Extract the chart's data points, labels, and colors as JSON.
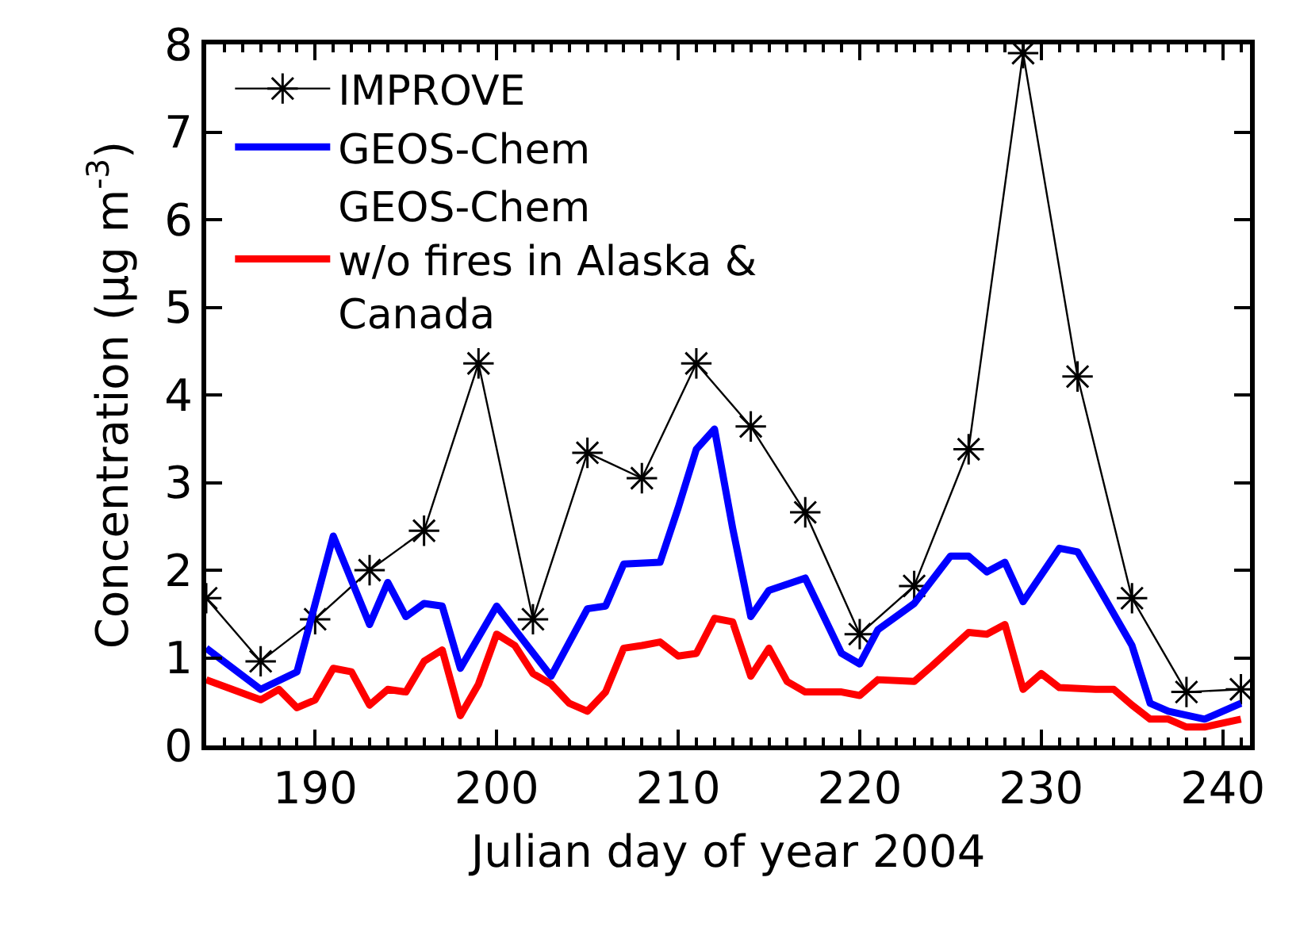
{
  "chart_data": {
    "type": "line",
    "xlabel": "Julian day of year 2004",
    "ylabel": "Concentration (μg m$^{-3}$)",
    "xlim": [
      184,
      241.5
    ],
    "xticks": [
      190,
      200,
      210,
      220,
      230,
      240
    ],
    "ylim": [
      0,
      8
    ],
    "yticks": [
      0,
      1,
      2,
      3,
      4,
      5,
      6,
      7,
      8
    ],
    "legend": "top left",
    "series": [
      {
        "name": "IMPROVE",
        "color": "#000000",
        "marker": "cross",
        "x": [
          184,
          187,
          190,
          193,
          196,
          199,
          202,
          205,
          208,
          211,
          214,
          217,
          220,
          223,
          226,
          229,
          232,
          235,
          238,
          241
        ],
        "values": [
          1.68,
          0.96,
          1.44,
          2.0,
          2.45,
          4.36,
          1.44,
          3.34,
          3.05,
          4.36,
          3.64,
          2.66,
          1.27,
          1.82,
          3.38,
          7.9,
          4.21,
          1.68,
          0.61,
          0.64
        ]
      },
      {
        "name": "GEOS-Chem",
        "color": "#0000ff",
        "marker": "none",
        "x": [
          184,
          187,
          189,
          191,
          193,
          194,
          195,
          196,
          197,
          198,
          200,
          203,
          205,
          206,
          207,
          209,
          210,
          211,
          212,
          213,
          214,
          215,
          217,
          219,
          220,
          221,
          223,
          225,
          226,
          227,
          228,
          229,
          231,
          232,
          233,
          235,
          236,
          237,
          239,
          241
        ],
        "values": [
          1.11,
          0.64,
          0.84,
          2.39,
          1.38,
          1.86,
          1.47,
          1.62,
          1.59,
          0.88,
          1.59,
          0.79,
          1.56,
          1.59,
          2.07,
          2.09,
          2.71,
          3.38,
          3.61,
          2.48,
          1.47,
          1.77,
          1.91,
          1.05,
          0.93,
          1.32,
          1.62,
          2.16,
          2.16,
          1.98,
          2.09,
          1.64,
          2.25,
          2.21,
          1.86,
          1.14,
          0.48,
          0.39,
          0.3,
          0.48
        ]
      },
      {
        "name": "GEOS-Chem\nw/o fires in Alaska &\nCanada",
        "color": "#ff0000",
        "marker": "none",
        "x": [
          184,
          187,
          188,
          189,
          190,
          191,
          192,
          193,
          194,
          195,
          196,
          197,
          198,
          199,
          200,
          201,
          202,
          203,
          204,
          205,
          206,
          207,
          208,
          209,
          210,
          211,
          212,
          213,
          214,
          215,
          216,
          217,
          219,
          220,
          221,
          223,
          224,
          226,
          227,
          228,
          229,
          230,
          231,
          233,
          234,
          235,
          236,
          237,
          238,
          239,
          241
        ],
        "values": [
          0.75,
          0.52,
          0.64,
          0.43,
          0.52,
          0.88,
          0.84,
          0.46,
          0.64,
          0.61,
          0.96,
          1.09,
          0.34,
          0.7,
          1.27,
          1.14,
          0.82,
          0.7,
          0.48,
          0.39,
          0.61,
          1.11,
          1.14,
          1.18,
          1.02,
          1.05,
          1.45,
          1.41,
          0.79,
          1.11,
          0.73,
          0.61,
          0.61,
          0.57,
          0.75,
          0.73,
          0.91,
          1.29,
          1.27,
          1.38,
          0.64,
          0.82,
          0.66,
          0.64,
          0.64,
          0.46,
          0.3,
          0.3,
          0.21,
          0.21,
          0.3
        ]
      }
    ]
  }
}
